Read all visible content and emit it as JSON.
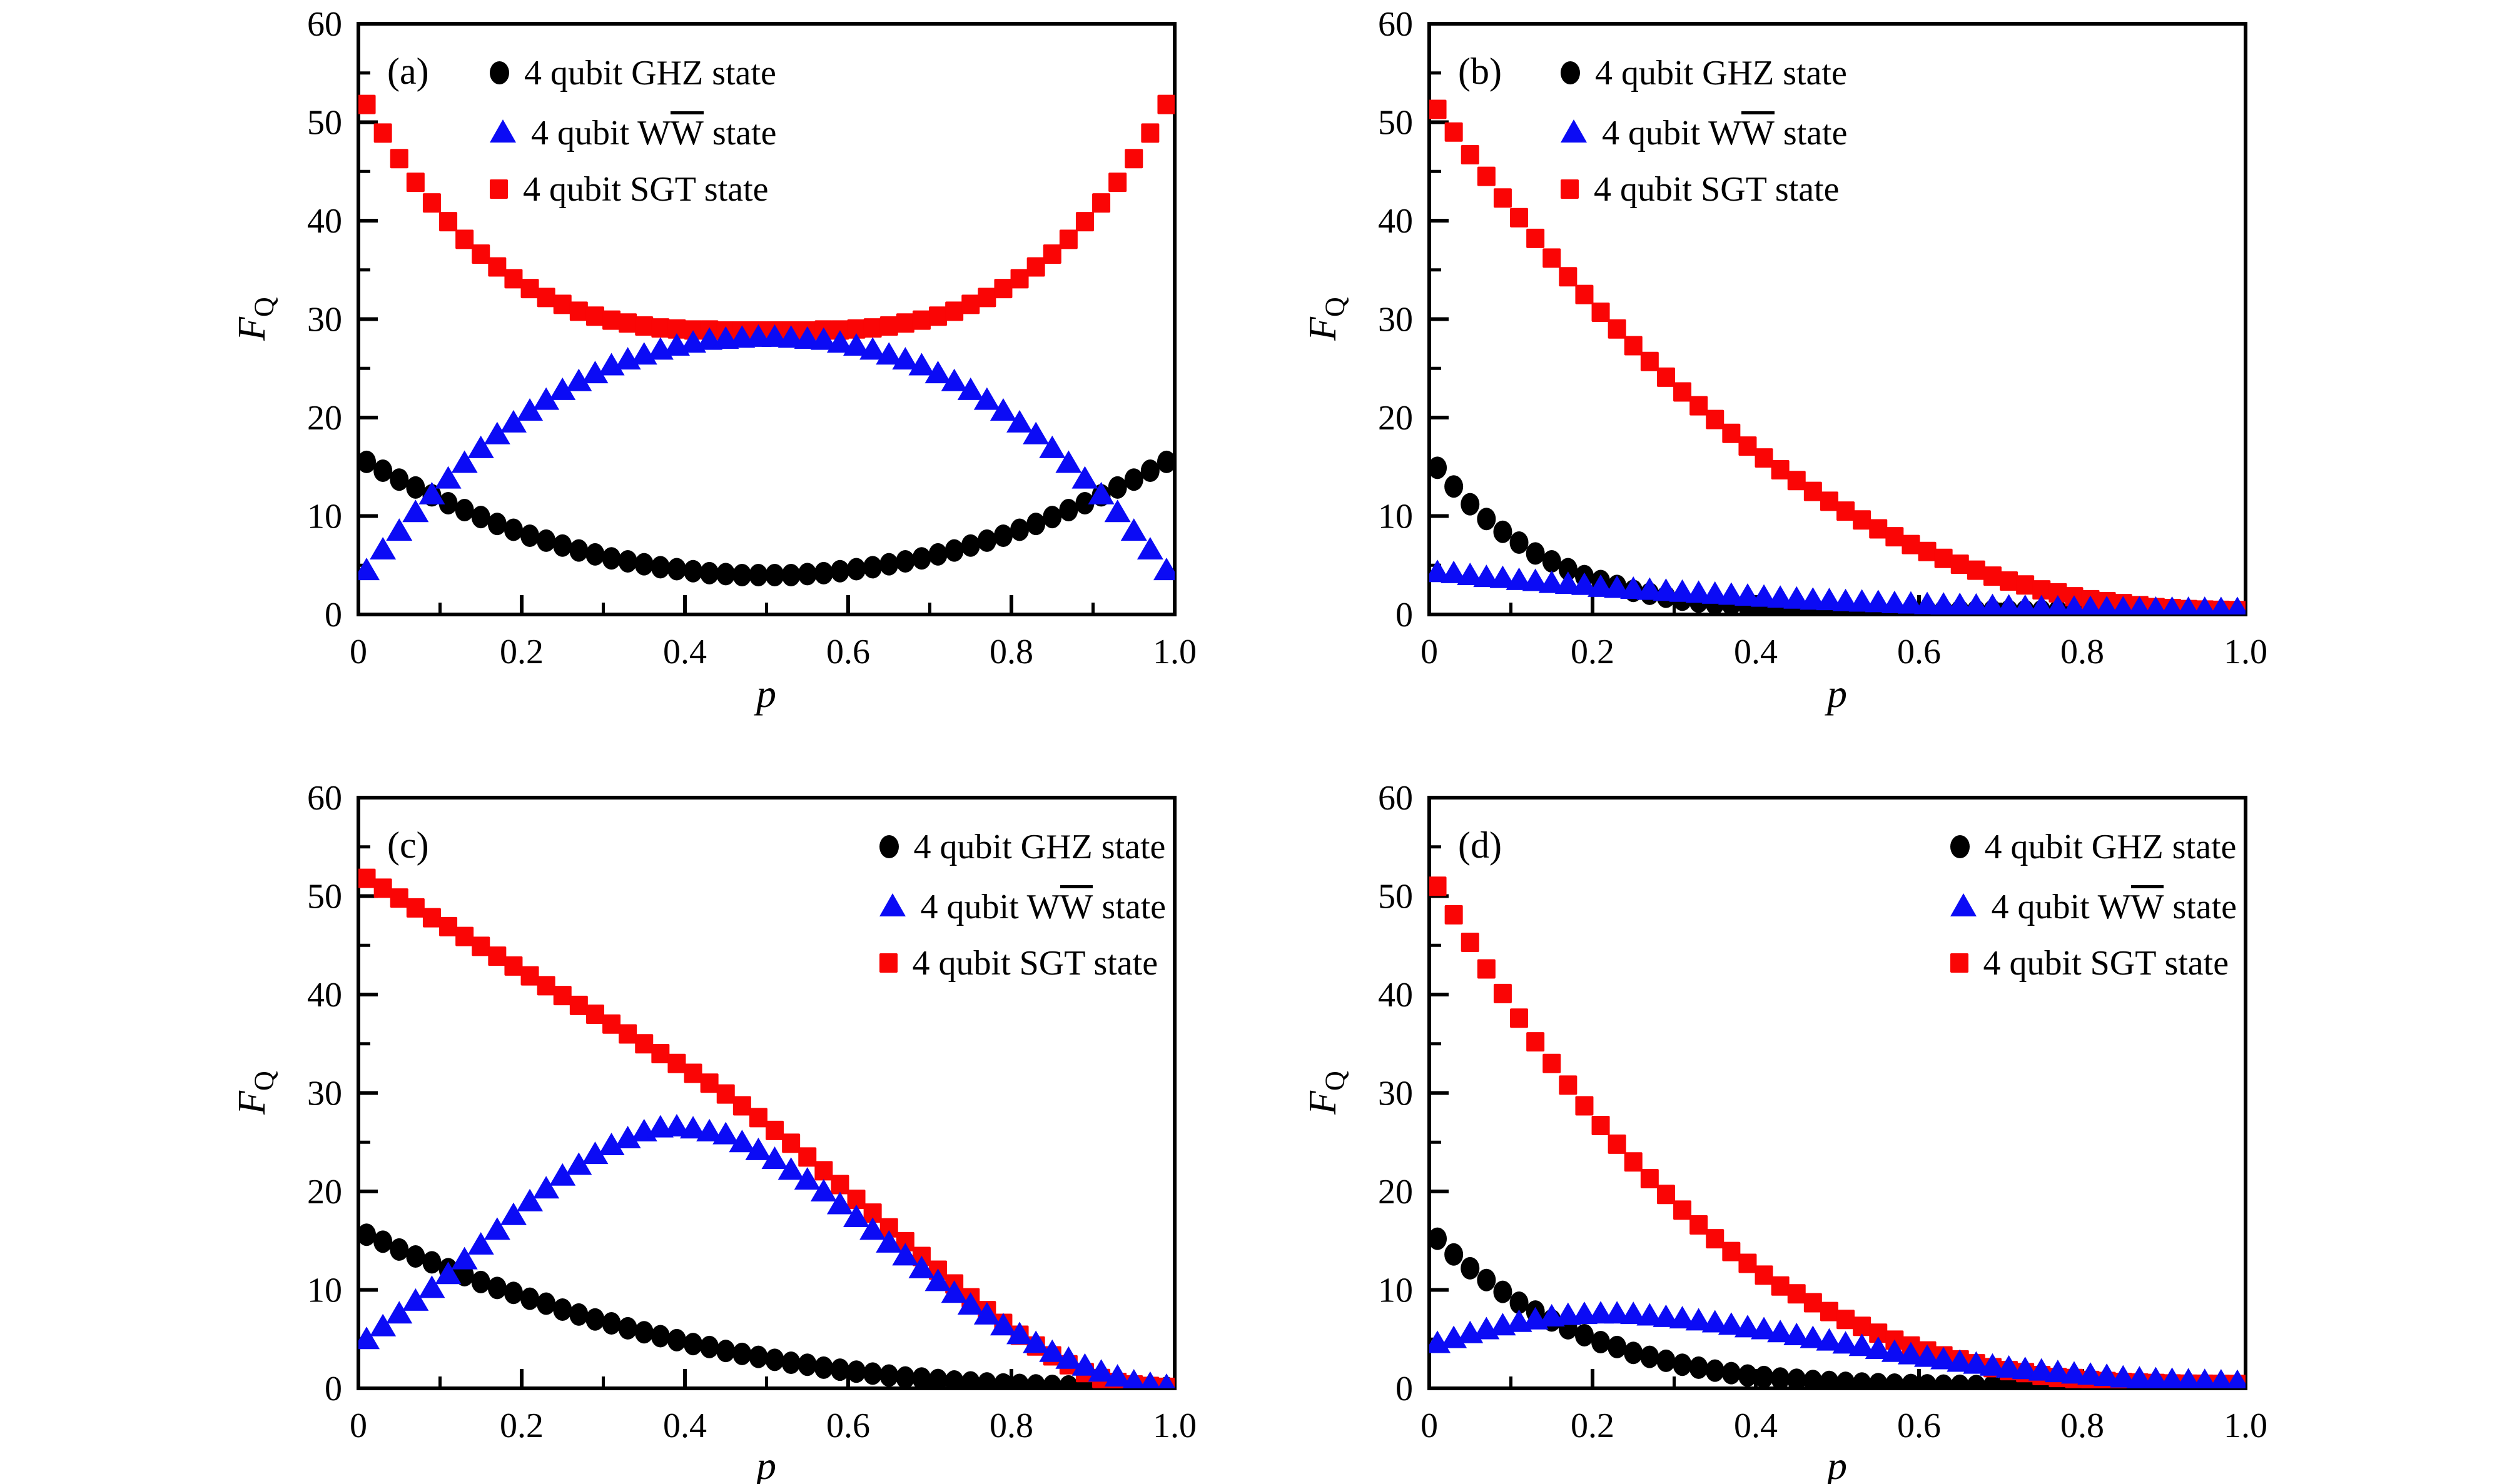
{
  "figure": {
    "background": "#ffffff",
    "colors": {
      "ghz": "#000000",
      "ww": "#0b0bf5",
      "sgt": "#fa0505"
    },
    "legend": {
      "ghz": "4 qubit GHZ state",
      "ww_pre": "4 qubit W",
      "ww_ov": "W",
      "ww_post": " state",
      "sgt": "4 qubit SGT state"
    },
    "axis": {
      "x_label": "p",
      "y_label_main": "F",
      "y_label_sub": "Q",
      "xtick_labels": [
        "0",
        "0.2",
        "0.4",
        "0.6",
        "0.8",
        "1.0"
      ],
      "ytick_labels": [
        "0",
        "10",
        "20",
        "30",
        "40",
        "50",
        "60"
      ]
    }
  },
  "chart_data": {
    "type": "scatter",
    "xlabel": "p",
    "ylabel": "F_Q",
    "xlim": [
      0,
      1
    ],
    "ylim": [
      0,
      60
    ],
    "xticks": [
      0,
      0.2,
      0.4,
      0.6,
      0.8,
      1.0
    ],
    "yticks": [
      0,
      10,
      20,
      30,
      40,
      50,
      60
    ],
    "xminor": [
      0.1,
      0.3,
      0.5,
      0.7,
      0.9
    ],
    "yminor": [
      5,
      15,
      25,
      35,
      45,
      55
    ],
    "grid": false,
    "x": [
      0.01,
      0.03,
      0.05,
      0.07,
      0.09,
      0.11,
      0.13,
      0.15,
      0.17,
      0.19,
      0.21,
      0.23,
      0.25,
      0.27,
      0.29,
      0.31,
      0.33,
      0.35,
      0.37,
      0.39,
      0.41,
      0.43,
      0.45,
      0.47,
      0.49,
      0.51,
      0.53,
      0.55,
      0.57,
      0.59,
      0.61,
      0.63,
      0.65,
      0.67,
      0.69,
      0.71,
      0.73,
      0.75,
      0.77,
      0.79,
      0.81,
      0.83,
      0.85,
      0.87,
      0.89,
      0.91,
      0.93,
      0.95,
      0.97,
      0.99
    ],
    "panels": [
      {
        "label": "(a)",
        "legend_pos": "inner-left",
        "series": [
          {
            "key": "ghz",
            "name": "4 qubit GHZ state",
            "marker": "circle",
            "color": "#000000",
            "y": [
              15.5,
              14.6,
              13.7,
              12.9,
              12.1,
              11.3,
              10.6,
              9.9,
              9.2,
              8.6,
              8.0,
              7.5,
              7.0,
              6.5,
              6.1,
              5.7,
              5.4,
              5.1,
              4.8,
              4.6,
              4.4,
              4.2,
              4.1,
              4.0,
              4.0,
              4.0,
              4.0,
              4.1,
              4.2,
              4.4,
              4.6,
              4.8,
              5.1,
              5.4,
              5.7,
              6.1,
              6.5,
              7.0,
              7.5,
              8.0,
              8.6,
              9.2,
              9.9,
              10.6,
              11.3,
              12.1,
              12.9,
              13.7,
              14.6,
              15.5
            ]
          },
          {
            "key": "ww",
            "name": "4 qubit WW state",
            "marker": "triangle",
            "color": "#0b0bf5",
            "y": [
              4.5,
              6.6,
              8.5,
              10.4,
              12.2,
              13.8,
              15.4,
              16.9,
              18.3,
              19.5,
              20.7,
              21.8,
              22.8,
              23.7,
              24.5,
              25.3,
              25.9,
              26.4,
              26.9,
              27.3,
              27.6,
              27.9,
              28.0,
              28.1,
              28.2,
              28.2,
              28.1,
              28.0,
              27.9,
              27.6,
              27.3,
              26.9,
              26.4,
              25.9,
              25.3,
              24.5,
              23.7,
              22.8,
              21.8,
              20.7,
              19.5,
              18.3,
              16.9,
              15.4,
              13.8,
              12.2,
              10.4,
              8.5,
              6.6,
              4.5
            ]
          },
          {
            "key": "sgt",
            "name": "4 qubit SGT state",
            "marker": "square",
            "color": "#fa0505",
            "y": [
              51.8,
              48.9,
              46.3,
              43.9,
              41.8,
              39.9,
              38.1,
              36.6,
              35.3,
              34.1,
              33.1,
              32.2,
              31.5,
              30.8,
              30.3,
              29.9,
              29.6,
              29.3,
              29.1,
              29.0,
              28.9,
              28.9,
              28.8,
              28.8,
              28.8,
              28.8,
              28.8,
              28.8,
              28.9,
              28.9,
              29.0,
              29.1,
              29.3,
              29.6,
              29.9,
              30.3,
              30.8,
              31.5,
              32.2,
              33.1,
              34.1,
              35.3,
              36.6,
              38.1,
              39.9,
              41.8,
              43.9,
              46.3,
              48.9,
              51.8
            ]
          }
        ]
      },
      {
        "label": "(b)",
        "legend_pos": "inner-left",
        "series": [
          {
            "key": "ghz",
            "name": "4 qubit GHZ state",
            "marker": "circle",
            "color": "#000000",
            "y": [
              14.9,
              13.0,
              11.2,
              9.7,
              8.4,
              7.3,
              6.2,
              5.4,
              4.6,
              3.9,
              3.4,
              2.9,
              2.4,
              2.1,
              1.8,
              1.5,
              1.3,
              1.1,
              1.0,
              0.84,
              0.74,
              0.66,
              0.59,
              0.53,
              0.49,
              0.46,
              0.43,
              0.41,
              0.39,
              0.38,
              0.37,
              0.36,
              0.36,
              0.35,
              0.35,
              0.34,
              0.34,
              0.34,
              0.33,
              0.33,
              0.33,
              0.33,
              0.32,
              0.32,
              0.32,
              0.32,
              0.31,
              0.31,
              0.31,
              0.3
            ]
          },
          {
            "key": "ww",
            "name": "4 qubit WW state",
            "marker": "triangle",
            "color": "#0b0bf5",
            "y": [
              4.3,
              4.2,
              4.0,
              3.8,
              3.7,
              3.5,
              3.4,
              3.2,
              3.1,
              3.0,
              2.8,
              2.7,
              2.6,
              2.5,
              2.4,
              2.3,
              2.2,
              2.1,
              2.0,
              1.9,
              1.8,
              1.7,
              1.6,
              1.5,
              1.45,
              1.35,
              1.3,
              1.25,
              1.15,
              1.1,
              1.05,
              1.0,
              0.95,
              0.9,
              0.85,
              0.8,
              0.76,
              0.73,
              0.7,
              0.68,
              0.65,
              0.63,
              0.61,
              0.6,
              0.58,
              0.57,
              0.56,
              0.56,
              0.55,
              0.55
            ]
          },
          {
            "key": "sgt",
            "name": "4 qubit SGT state",
            "marker": "square",
            "color": "#fa0505",
            "y": [
              51.3,
              49.0,
              46.7,
              44.5,
              42.3,
              40.3,
              38.2,
              36.2,
              34.3,
              32.5,
              30.7,
              29.0,
              27.3,
              25.7,
              24.1,
              22.6,
              21.2,
              19.8,
              18.4,
              17.1,
              15.9,
              14.7,
              13.6,
              12.5,
              11.5,
              10.5,
              9.6,
              8.7,
              7.9,
              7.1,
              6.4,
              5.7,
              5.1,
              4.5,
              3.9,
              3.4,
              3.0,
              2.5,
              2.2,
              1.8,
              1.5,
              1.3,
              1.1,
              0.9,
              0.7,
              0.6,
              0.5,
              0.45,
              0.42,
              0.4
            ]
          }
        ]
      },
      {
        "label": "(c)",
        "legend_pos": "inner-right",
        "series": [
          {
            "key": "ghz",
            "name": "4 qubit GHZ state",
            "marker": "circle",
            "color": "#000000",
            "y": [
              15.6,
              14.9,
              14.1,
              13.4,
              12.8,
              12.1,
              11.5,
              10.8,
              10.2,
              9.7,
              9.1,
              8.6,
              8.0,
              7.5,
              7.0,
              6.6,
              6.1,
              5.7,
              5.3,
              4.9,
              4.5,
              4.2,
              3.8,
              3.5,
              3.2,
              2.9,
              2.6,
              2.4,
              2.1,
              1.9,
              1.7,
              1.5,
              1.3,
              1.1,
              1.0,
              0.85,
              0.7,
              0.6,
              0.5,
              0.4,
              0.35,
              0.3,
              0.25,
              0.2,
              0.15,
              0.12,
              0.1,
              0.08,
              0.06,
              0.05
            ]
          },
          {
            "key": "ww",
            "name": "4 qubit WW state",
            "marker": "triangle",
            "color": "#0b0bf5",
            "y": [
              5.0,
              6.3,
              7.6,
              8.9,
              10.2,
              11.6,
              13.1,
              14.6,
              16.1,
              17.6,
              19.0,
              20.3,
              21.6,
              22.7,
              23.8,
              24.7,
              25.4,
              26.1,
              26.5,
              26.6,
              26.4,
              26.1,
              25.8,
              25.0,
              24.2,
              23.3,
              22.2,
              21.2,
              20.0,
              18.7,
              17.4,
              16.1,
              14.8,
              13.5,
              12.2,
              10.9,
              9.7,
              8.5,
              7.5,
              6.4,
              5.5,
              4.6,
              3.7,
              3.0,
              2.3,
              1.7,
              1.2,
              0.7,
              0.45,
              0.25
            ]
          },
          {
            "key": "sgt",
            "name": "4 qubit SGT state",
            "marker": "square",
            "color": "#fa0505",
            "y": [
              51.8,
              50.8,
              49.8,
              48.8,
              47.8,
              46.9,
              45.9,
              44.9,
              43.9,
              42.9,
              41.9,
              40.9,
              39.9,
              38.9,
              38.0,
              37.0,
              36.0,
              35.0,
              34.0,
              33.0,
              32.0,
              31.0,
              29.9,
              28.7,
              27.5,
              26.2,
              24.9,
              23.5,
              22.1,
              20.7,
              19.2,
              17.8,
              16.3,
              14.9,
              13.4,
              12.0,
              10.6,
              9.2,
              7.9,
              6.6,
              5.4,
              4.3,
              3.3,
              2.4,
              1.6,
              1.0,
              0.6,
              0.35,
              0.2,
              0.1
            ]
          }
        ]
      },
      {
        "label": "(d)",
        "legend_pos": "inner-right",
        "series": [
          {
            "key": "ghz",
            "name": "4 qubit GHZ state",
            "marker": "circle",
            "color": "#000000",
            "y": [
              15.2,
              13.6,
              12.2,
              11.0,
              9.8,
              8.7,
              7.8,
              6.9,
              6.1,
              5.4,
              4.7,
              4.2,
              3.6,
              3.2,
              2.8,
              2.4,
              2.1,
              1.8,
              1.55,
              1.3,
              1.15,
              1.0,
              0.87,
              0.75,
              0.65,
              0.56,
              0.49,
              0.43,
              0.38,
              0.34,
              0.31,
              0.28,
              0.26,
              0.24,
              0.23,
              0.22,
              0.21,
              0.21,
              0.2,
              0.2,
              0.2,
              0.2,
              0.2,
              0.2,
              0.2,
              0.2,
              0.2,
              0.2,
              0.2,
              0.2
            ]
          },
          {
            "key": "ww",
            "name": "4 qubit WW state",
            "marker": "triangle",
            "color": "#0b0bf5",
            "y": [
              4.6,
              5.1,
              5.6,
              6.0,
              6.4,
              6.75,
              7.0,
              7.3,
              7.45,
              7.55,
              7.6,
              7.6,
              7.55,
              7.4,
              7.25,
              7.1,
              6.9,
              6.7,
              6.45,
              6.2,
              6.0,
              5.7,
              5.4,
              5.1,
              4.85,
              4.55,
              4.3,
              4.0,
              3.7,
              3.45,
              3.2,
              2.95,
              2.7,
              2.5,
              2.3,
              2.1,
              1.95,
              1.8,
              1.64,
              1.5,
              1.38,
              1.26,
              1.1,
              1.0,
              0.92,
              0.86,
              0.8,
              0.75,
              0.7,
              0.65
            ]
          },
          {
            "key": "sgt",
            "name": "4 qubit SGT state",
            "marker": "square",
            "color": "#fa0505",
            "y": [
              51.0,
              48.1,
              45.3,
              42.6,
              40.1,
              37.6,
              35.2,
              33.0,
              30.8,
              28.7,
              26.7,
              24.8,
              23.0,
              21.3,
              19.7,
              18.1,
              16.6,
              15.2,
              13.9,
              12.7,
              11.5,
              10.4,
              9.6,
              8.7,
              7.8,
              7.0,
              6.3,
              5.6,
              4.9,
              4.3,
              3.8,
              3.3,
              2.9,
              2.5,
              2.1,
              1.8,
              1.6,
              1.3,
              1.1,
              1.0,
              0.8,
              0.7,
              0.6,
              0.55,
              0.5,
              0.45,
              0.43,
              0.42,
              0.41,
              0.4
            ]
          }
        ]
      }
    ]
  }
}
